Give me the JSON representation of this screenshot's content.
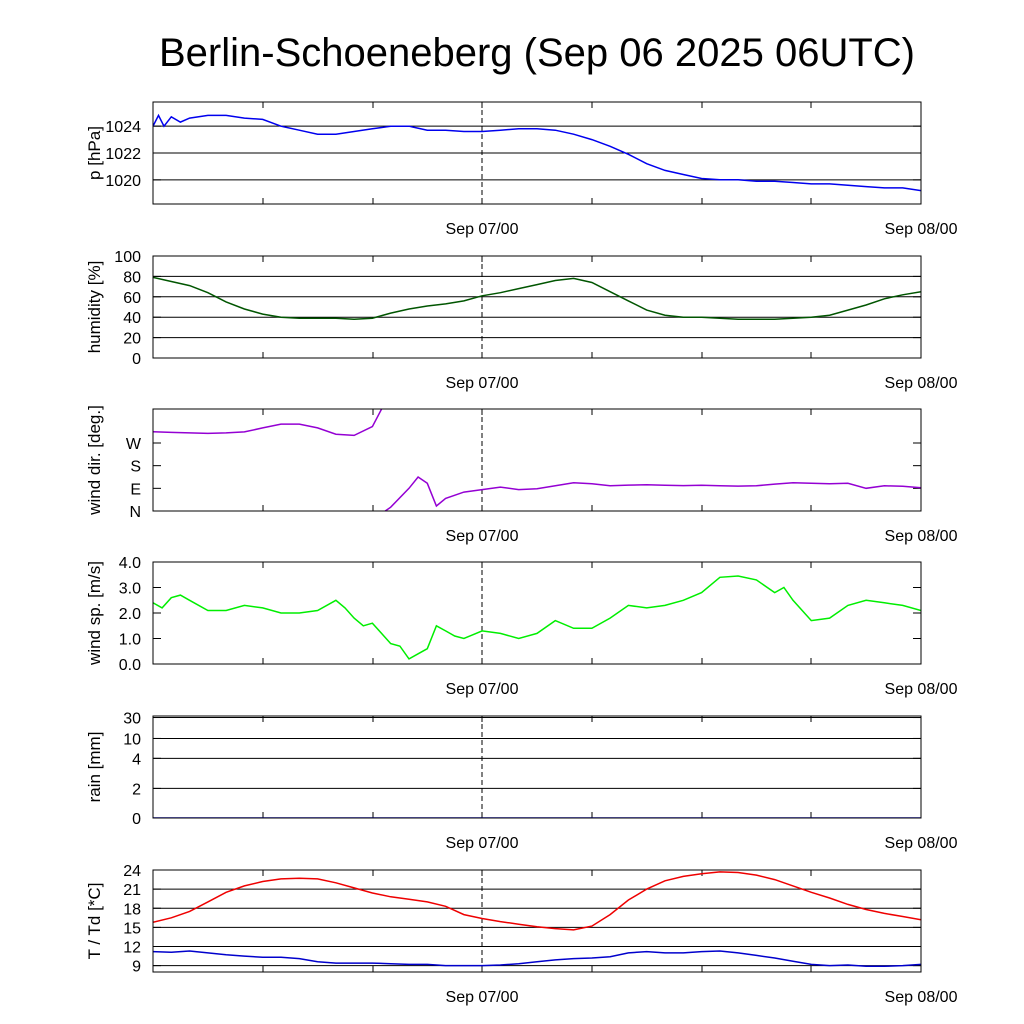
{
  "title": "Berlin-Schoeneberg (Sep 06 2025 06UTC)",
  "colors": {
    "pressure": "#0000ee",
    "humidity": "#005500",
    "wind_dir": "#9400d3",
    "wind_speed": "#00ee00",
    "rain": "#0000ee",
    "temperature": "#ee0000",
    "dewpoint": "#0000cc"
  },
  "chart_data": [
    {
      "type": "line",
      "id": "pressure",
      "ylabel": "p [hPa]",
      "xlabels": [
        "Sep 07/00",
        "Sep 08/00"
      ],
      "x_range_hours": [
        0,
        42
      ],
      "ylim": [
        1018.2,
        1025.8
      ],
      "yticks": [
        1020,
        1022,
        1024
      ],
      "ytick_labels": [
        "1020",
        "1022",
        "1024"
      ],
      "grid": true,
      "series": [
        {
          "color_key": "pressure",
          "x": [
            0,
            0.3,
            0.6,
            1,
            1.5,
            2,
            3,
            4,
            5,
            6,
            7,
            8,
            9,
            10,
            11,
            12,
            13,
            14,
            15,
            16,
            17,
            18,
            19,
            20,
            21,
            22,
            23,
            24,
            25,
            26,
            27,
            28,
            29,
            30,
            31,
            32,
            33,
            34,
            35,
            36,
            37,
            38,
            39,
            40,
            41,
            42
          ],
          "y": [
            1024.0,
            1024.8,
            1024.0,
            1024.7,
            1024.3,
            1024.6,
            1024.8,
            1024.8,
            1024.6,
            1024.5,
            1024.0,
            1023.7,
            1023.4,
            1023.4,
            1023.6,
            1023.8,
            1024.0,
            1024.0,
            1023.7,
            1023.7,
            1023.6,
            1023.6,
            1023.7,
            1023.8,
            1023.8,
            1023.7,
            1023.4,
            1023.0,
            1022.5,
            1021.9,
            1021.2,
            1020.7,
            1020.4,
            1020.1,
            1020.0,
            1020.0,
            1019.9,
            1019.9,
            1019.8,
            1019.7,
            1019.7,
            1019.6,
            1019.5,
            1019.4,
            1019.4,
            1019.2
          ]
        }
      ]
    },
    {
      "type": "line",
      "id": "humidity",
      "ylabel": "humidity [%]",
      "xlabels": [
        "Sep 07/00",
        "Sep 08/00"
      ],
      "x_range_hours": [
        0,
        42
      ],
      "ylim": [
        0,
        100
      ],
      "yticks": [
        0,
        20,
        40,
        60,
        80,
        100
      ],
      "ytick_labels": [
        "0",
        "20",
        "40",
        "60",
        "80",
        "100"
      ],
      "grid": true,
      "series": [
        {
          "color_key": "humidity",
          "x": [
            0,
            1,
            2,
            3,
            4,
            5,
            6,
            7,
            8,
            9,
            10,
            11,
            12,
            13,
            14,
            15,
            16,
            17,
            18,
            19,
            20,
            21,
            22,
            23,
            24,
            25,
            26,
            27,
            28,
            29,
            30,
            31,
            32,
            33,
            34,
            35,
            36,
            37,
            38,
            39,
            40,
            41,
            42
          ],
          "y": [
            79,
            75,
            71,
            64,
            55,
            48,
            43,
            40,
            39,
            39,
            39,
            38,
            39,
            44,
            48,
            51,
            53,
            56,
            61,
            64,
            68,
            72,
            76,
            78,
            74,
            65,
            56,
            47,
            42,
            40,
            40,
            39,
            38,
            38,
            38,
            39,
            40,
            42,
            47,
            52,
            58,
            62,
            65
          ]
        }
      ]
    },
    {
      "type": "line",
      "id": "wind_dir",
      "ylabel": "wind dir. [deg.]",
      "xlabels": [
        "Sep 07/00",
        "Sep 08/00"
      ],
      "x_range_hours": [
        0,
        42
      ],
      "ylim": [
        0,
        405
      ],
      "yticks": [
        0,
        90,
        180,
        270
      ],
      "ytick_labels": [
        "N",
        "E",
        "S",
        "W"
      ],
      "grid": false,
      "series": [
        {
          "color_key": "wind_dir",
          "x": [
            0,
            1,
            2,
            3,
            4,
            5,
            6,
            7,
            8,
            9,
            10,
            11,
            12,
            12.5
          ],
          "y": [
            315,
            312,
            310,
            308,
            310,
            314,
            330,
            345,
            345,
            330,
            305,
            300,
            335,
            405
          ]
        },
        {
          "color_key": "wind_dir",
          "x": [
            12.5,
            13,
            14,
            14.5,
            15,
            15.5,
            16,
            17,
            18,
            19,
            20,
            21,
            22,
            23,
            24,
            25,
            26,
            27,
            28,
            29,
            30,
            31,
            32,
            33,
            34,
            35,
            36,
            37,
            38,
            39,
            40,
            41,
            42
          ],
          "y": [
            -10,
            15,
            90,
            135,
            110,
            20,
            50,
            75,
            85,
            95,
            85,
            88,
            100,
            112,
            108,
            100,
            103,
            104,
            102,
            101,
            102,
            100,
            99,
            100,
            107,
            112,
            110,
            108,
            110,
            90,
            100,
            98,
            92
          ]
        }
      ]
    },
    {
      "type": "line",
      "id": "wind_speed",
      "ylabel": "wind sp. [m/s]",
      "xlabels": [
        "Sep 07/00",
        "Sep 08/00"
      ],
      "x_range_hours": [
        0,
        42
      ],
      "ylim": [
        0,
        4
      ],
      "yticks": [
        0,
        1,
        2,
        3,
        4
      ],
      "ytick_labels": [
        "0.0",
        "1.0",
        "2.0",
        "3.0",
        "4.0"
      ],
      "grid": false,
      "series": [
        {
          "color_key": "wind_speed",
          "x": [
            0,
            0.5,
            1,
            1.5,
            2,
            3,
            4,
            5,
            6,
            7,
            8,
            9,
            10,
            10.5,
            11,
            11.5,
            12,
            13,
            13.5,
            14,
            14.5,
            15,
            15.5,
            16,
            16.5,
            17,
            18,
            19,
            20,
            21,
            22,
            23,
            24,
            25,
            26,
            27,
            28,
            29,
            30,
            31,
            32,
            33,
            34,
            34.5,
            35,
            36,
            37,
            38,
            39,
            40,
            41,
            42
          ],
          "y": [
            2.4,
            2.2,
            2.6,
            2.7,
            2.5,
            2.1,
            2.1,
            2.3,
            2.2,
            2.0,
            2.0,
            2.1,
            2.5,
            2.2,
            1.8,
            1.5,
            1.6,
            0.8,
            0.7,
            0.2,
            0.4,
            0.6,
            1.5,
            1.3,
            1.1,
            1.0,
            1.3,
            1.2,
            1.0,
            1.2,
            1.7,
            1.4,
            1.4,
            1.8,
            2.3,
            2.2,
            2.3,
            2.5,
            2.8,
            3.4,
            3.45,
            3.3,
            2.8,
            3.0,
            2.5,
            1.7,
            1.8,
            2.3,
            2.5,
            2.4,
            2.3,
            2.1
          ]
        }
      ]
    },
    {
      "type": "line",
      "id": "rain",
      "ylabel": "rain [mm]",
      "xlabels": [
        "Sep 07/00",
        "Sep 08/00"
      ],
      "x_range_hours": [
        0,
        42
      ],
      "ylim": [
        0,
        32
      ],
      "yticks": [
        0,
        2,
        4,
        10,
        30
      ],
      "ytick_labels": [
        "0",
        "2",
        "4",
        "10",
        "30"
      ],
      "grid": true,
      "series": [
        {
          "color_key": "rain",
          "x": [
            0,
            42
          ],
          "y": [
            0,
            0
          ]
        }
      ]
    },
    {
      "type": "line",
      "id": "temperature",
      "ylabel": "T / Td [*C]",
      "xlabels": [
        "Sep 07/00",
        "Sep 08/00"
      ],
      "x_range_hours": [
        0,
        42
      ],
      "ylim": [
        8,
        24
      ],
      "yticks": [
        9,
        12,
        15,
        18,
        21,
        24
      ],
      "ytick_labels": [
        "9",
        "12",
        "15",
        "18",
        "21",
        "24"
      ],
      "grid": true,
      "series": [
        {
          "color_key": "temperature",
          "x": [
            0,
            1,
            2,
            3,
            4,
            5,
            6,
            7,
            8,
            9,
            10,
            11,
            12,
            13,
            14,
            15,
            16,
            17,
            18,
            19,
            20,
            21,
            22,
            23,
            24,
            25,
            26,
            27,
            28,
            29,
            30,
            31,
            32,
            33,
            34,
            35,
            36,
            37,
            38,
            39,
            40,
            41,
            42
          ],
          "y": [
            15.8,
            16.5,
            17.5,
            19.0,
            20.5,
            21.5,
            22.2,
            22.6,
            22.7,
            22.6,
            22.0,
            21.2,
            20.4,
            19.8,
            19.4,
            19.0,
            18.3,
            17.0,
            16.4,
            15.9,
            15.5,
            15.1,
            14.8,
            14.6,
            15.2,
            17.0,
            19.3,
            21.0,
            22.3,
            23.0,
            23.4,
            23.7,
            23.6,
            23.2,
            22.5,
            21.5,
            20.5,
            19.6,
            18.6,
            17.8,
            17.2,
            16.7,
            16.2
          ]
        },
        {
          "color_key": "dewpoint",
          "x": [
            0,
            1,
            2,
            3,
            4,
            5,
            6,
            7,
            8,
            9,
            10,
            11,
            12,
            13,
            14,
            15,
            16,
            17,
            18,
            19,
            20,
            21,
            22,
            23,
            24,
            25,
            26,
            27,
            28,
            29,
            30,
            31,
            32,
            33,
            34,
            35,
            36,
            37,
            38,
            39,
            40,
            41,
            42
          ],
          "y": [
            11.2,
            11.1,
            11.3,
            11.0,
            10.7,
            10.5,
            10.3,
            10.3,
            10.1,
            9.6,
            9.4,
            9.4,
            9.4,
            9.3,
            9.2,
            9.2,
            9.0,
            9.0,
            9.0,
            9.1,
            9.3,
            9.6,
            9.9,
            10.1,
            10.2,
            10.4,
            11.0,
            11.2,
            11.0,
            11.0,
            11.2,
            11.3,
            11.0,
            10.6,
            10.2,
            9.7,
            9.2,
            9.0,
            9.1,
            8.9,
            8.9,
            9.0,
            9.2
          ]
        }
      ]
    }
  ]
}
